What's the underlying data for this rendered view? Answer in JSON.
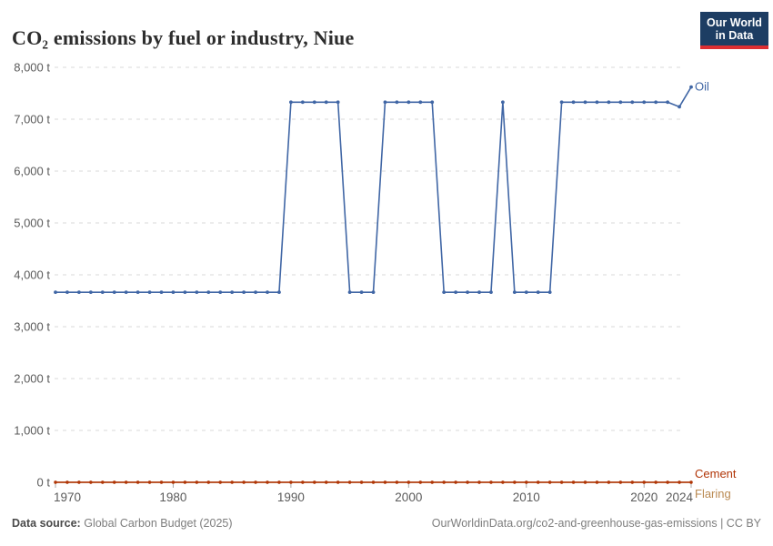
{
  "header": {
    "title": "CO₂ emissions by fuel or industry, Niue",
    "logo": {
      "line1": "Our World",
      "line2": "in Data"
    }
  },
  "footer": {
    "source_label": "Data source:",
    "source_value": "Global Carbon Budget (2025)",
    "attribution": "OurWorldinData.org/co2-and-greenhouse-gas-emissions | CC BY"
  },
  "colors": {
    "oil": "#4066a5",
    "cement": "#b13507",
    "flaring": "#ba8a52",
    "grid": "#d8d8d8",
    "axis_text": "#5b5b5b",
    "tick_mark": "#a8a8a8",
    "logo_bg": "#1d3d63",
    "logo_bar": "#dc2e32"
  },
  "chart_data": {
    "type": "line",
    "title": "CO₂ emissions by fuel or industry, Niue",
    "unit": "t",
    "xlabel": "",
    "ylabel": "",
    "xlim": [
      1970,
      2024
    ],
    "ylim": [
      0,
      8000
    ],
    "grid": "horizontal-dashed",
    "legend_position": "right-end-labels",
    "xticks": [
      1970,
      1980,
      1990,
      2000,
      2010,
      2020,
      2024
    ],
    "yticks": [
      0,
      1000,
      2000,
      3000,
      4000,
      5000,
      6000,
      7000,
      8000
    ],
    "ytick_labels": [
      "0 t",
      "1,000 t",
      "2,000 t",
      "3,000 t",
      "4,000 t",
      "5,000 t",
      "6,000 t",
      "7,000 t",
      "8,000 t"
    ],
    "x": [
      1970,
      1971,
      1972,
      1973,
      1974,
      1975,
      1976,
      1977,
      1978,
      1979,
      1980,
      1981,
      1982,
      1983,
      1984,
      1985,
      1986,
      1987,
      1988,
      1989,
      1990,
      1991,
      1992,
      1993,
      1994,
      1995,
      1996,
      1997,
      1998,
      1999,
      2000,
      2001,
      2002,
      2003,
      2004,
      2005,
      2006,
      2007,
      2008,
      2009,
      2010,
      2011,
      2012,
      2013,
      2014,
      2015,
      2016,
      2017,
      2018,
      2019,
      2020,
      2021,
      2022,
      2023,
      2024
    ],
    "series": [
      {
        "name": "Flaring",
        "color": "#ba8a52",
        "label_dy": 17,
        "values": [
          0,
          0,
          0,
          0,
          0,
          0,
          0,
          0,
          0,
          0,
          0,
          0,
          0,
          0,
          0,
          0,
          0,
          0,
          0,
          0,
          0,
          0,
          0,
          0,
          0,
          0,
          0,
          0,
          0,
          0,
          0,
          0,
          0,
          0,
          0,
          0,
          0,
          0,
          0,
          0,
          0,
          0,
          0,
          0,
          0,
          0,
          0,
          0,
          0,
          0,
          0,
          0,
          0,
          0,
          0
        ]
      },
      {
        "name": "Cement",
        "color": "#b13507",
        "label_dy": -5,
        "values": [
          0,
          0,
          0,
          0,
          0,
          0,
          0,
          0,
          0,
          0,
          0,
          0,
          0,
          0,
          0,
          0,
          0,
          0,
          0,
          0,
          0,
          0,
          0,
          0,
          0,
          0,
          0,
          0,
          0,
          0,
          0,
          0,
          0,
          0,
          0,
          0,
          0,
          0,
          0,
          0,
          0,
          0,
          0,
          0,
          0,
          0,
          0,
          0,
          0,
          0,
          0,
          0,
          0,
          0,
          0
        ]
      },
      {
        "name": "Oil",
        "color": "#4066a5",
        "label_dy": 4,
        "values": [
          3664,
          3664,
          3664,
          3664,
          3664,
          3664,
          3664,
          3664,
          3664,
          3664,
          3664,
          3664,
          3664,
          3664,
          3664,
          3664,
          3664,
          3664,
          3664,
          3664,
          7328,
          7328,
          7328,
          7328,
          7328,
          3664,
          3664,
          3664,
          7328,
          7328,
          7328,
          7328,
          7328,
          3664,
          3664,
          3664,
          3664,
          3664,
          7328,
          3664,
          3664,
          3664,
          3664,
          7328,
          7328,
          7328,
          7328,
          7328,
          7328,
          7328,
          7328,
          7328,
          7328,
          7240,
          7620
        ]
      }
    ]
  }
}
